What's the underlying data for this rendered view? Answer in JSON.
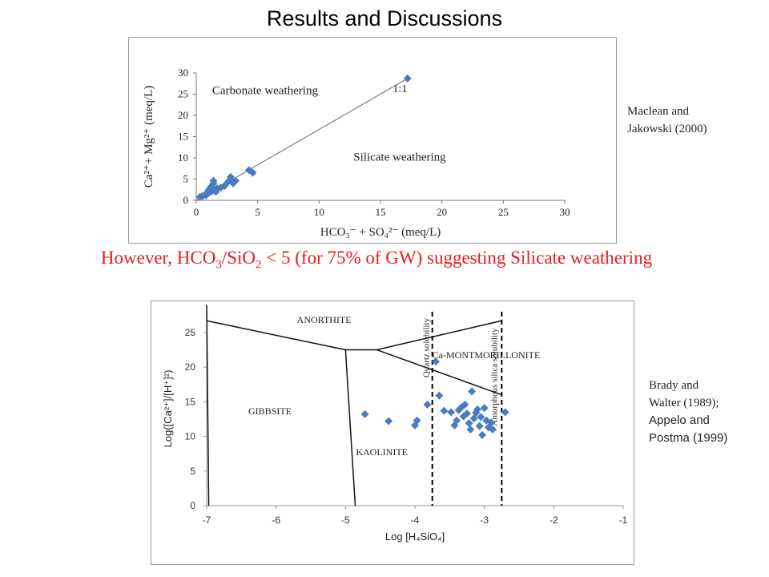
{
  "slide": {
    "title": "Results and Discussions",
    "ref_top": [
      "Maclean and",
      "Jakowski (2000)"
    ],
    "ref_bottom": [
      "Brady and",
      "Walter (1989);",
      "Appelo and",
      "Postma (1999)"
    ],
    "caption": {
      "pre": "However, HCO",
      "sub1": "3",
      "mid": "/SiO",
      "sub2": "2",
      "post": " < 5 (for 75% of GW) suggesting Silicate weathering"
    }
  },
  "chart_data": [
    {
      "type": "scatter",
      "title": "",
      "xlabel": "HCO₃⁻ + SO₄²⁻ (meq/L)",
      "ylabel": "Ca²⁺+ Mg²⁺ (meq/L)",
      "xlim": [
        0,
        30
      ],
      "ylim": [
        0,
        30
      ],
      "xticks": [
        "0",
        "5",
        "10",
        "15",
        "20",
        "25",
        "30"
      ],
      "yticks": [
        "0",
        "5",
        "10",
        "15",
        "20",
        "25",
        "30"
      ],
      "grid": false,
      "annotations": [
        "Carbonate weathering",
        "Silicate weathering",
        "1:1"
      ],
      "line_1to1": [
        [
          0,
          0
        ],
        [
          17.2,
          28.7
        ]
      ],
      "marker_color": "#4a7dc0",
      "series": [
        {
          "points": [
            [
              0.3,
              0.8
            ],
            [
              0.5,
              1.0
            ],
            [
              0.7,
              1.3
            ],
            [
              0.9,
              1.6
            ],
            [
              1.1,
              1.9
            ],
            [
              1.3,
              2.2
            ],
            [
              1.5,
              2.5
            ],
            [
              1.7,
              2.8
            ],
            [
              2.0,
              3.0
            ],
            [
              2.3,
              3.4
            ],
            [
              1.2,
              3.2
            ],
            [
              1.4,
              4.0
            ],
            [
              1.4,
              4.6
            ],
            [
              2.6,
              4.4
            ],
            [
              2.8,
              5.5
            ],
            [
              3.0,
              4.0
            ],
            [
              3.2,
              4.6
            ],
            [
              1.0,
              2.4
            ],
            [
              1.6,
              2.0
            ],
            [
              0.8,
              1.2
            ],
            [
              4.3,
              7.1
            ],
            [
              4.6,
              6.5
            ],
            [
              17.2,
              28.7
            ]
          ]
        }
      ]
    },
    {
      "type": "scatter",
      "title": "",
      "xlabel": "Log [H₄SiO₄]",
      "ylabel": "Log([Ca²⁺]/[H⁺]²)",
      "xlim": [
        -7,
        -1
      ],
      "ylim": [
        0,
        28
      ],
      "xticks": [
        "-7",
        "-6",
        "-5",
        "-4",
        "-3",
        "-2",
        "-1"
      ],
      "yticks": [
        "0",
        "5",
        "10",
        "15",
        "20",
        "25"
      ],
      "grid": false,
      "field_labels": [
        "ANORTHITE",
        "Ca-MONTMORILLONITE",
        "GIBBSITE",
        "KAOLINITE"
      ],
      "dashed_labels": [
        "Quartz solubility",
        "Amorphous silica solubility"
      ],
      "quartz_x": -3.75,
      "amorphous_x": -2.75,
      "marker_color": "#4a7dc0",
      "series": [
        {
          "points": [
            [
              -4.72,
              13.2
            ],
            [
              -4.38,
              12.2
            ],
            [
              -4.0,
              11.6
            ],
            [
              -3.97,
              12.3
            ],
            [
              -3.82,
              14.6
            ],
            [
              -3.7,
              20.8
            ],
            [
              -3.65,
              15.9
            ],
            [
              -3.58,
              13.7
            ],
            [
              -3.48,
              13.5
            ],
            [
              -3.43,
              11.6
            ],
            [
              -3.4,
              12.3
            ],
            [
              -3.37,
              13.8
            ],
            [
              -3.33,
              14.2
            ],
            [
              -3.3,
              12.9
            ],
            [
              -3.28,
              14.6
            ],
            [
              -3.25,
              13.3
            ],
            [
              -3.22,
              11.9
            ],
            [
              -3.2,
              11.0
            ],
            [
              -3.18,
              16.5
            ],
            [
              -3.15,
              12.6
            ],
            [
              -3.12,
              13.4
            ],
            [
              -3.1,
              13.9
            ],
            [
              -3.07,
              11.5
            ],
            [
              -3.05,
              12.8
            ],
            [
              -3.03,
              10.2
            ],
            [
              -3.0,
              14.1
            ],
            [
              -2.97,
              12.3
            ],
            [
              -2.94,
              11.3
            ],
            [
              -2.9,
              12.0
            ],
            [
              -2.88,
              11.0
            ],
            [
              -2.7,
              13.5
            ]
          ]
        }
      ]
    }
  ]
}
